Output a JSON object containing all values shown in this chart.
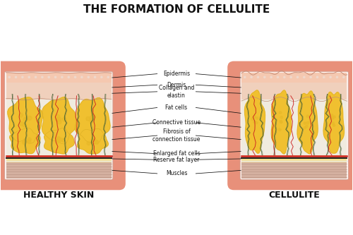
{
  "title": "THE FORMATION OF CELLULITE",
  "label_left": "HEALTHY SKIN",
  "label_right": "CELLULITE",
  "bg_color": "#ffffff",
  "outer_skin_color": "#E8907A",
  "inner_bg_color": "#FAF0EC",
  "epidermis_color": "#F5C8B0",
  "dermis_color": "#F0D0BC",
  "fat_yellow": "#F0C030",
  "fat_yellow_dark": "#D4A820",
  "fat_yellow_inner": "#E8B828",
  "reserve_fat_color": "#F5E090",
  "muscle_color": "#D4B0A0",
  "annot_font": 5.5,
  "title_font": 11,
  "label_font": 9
}
